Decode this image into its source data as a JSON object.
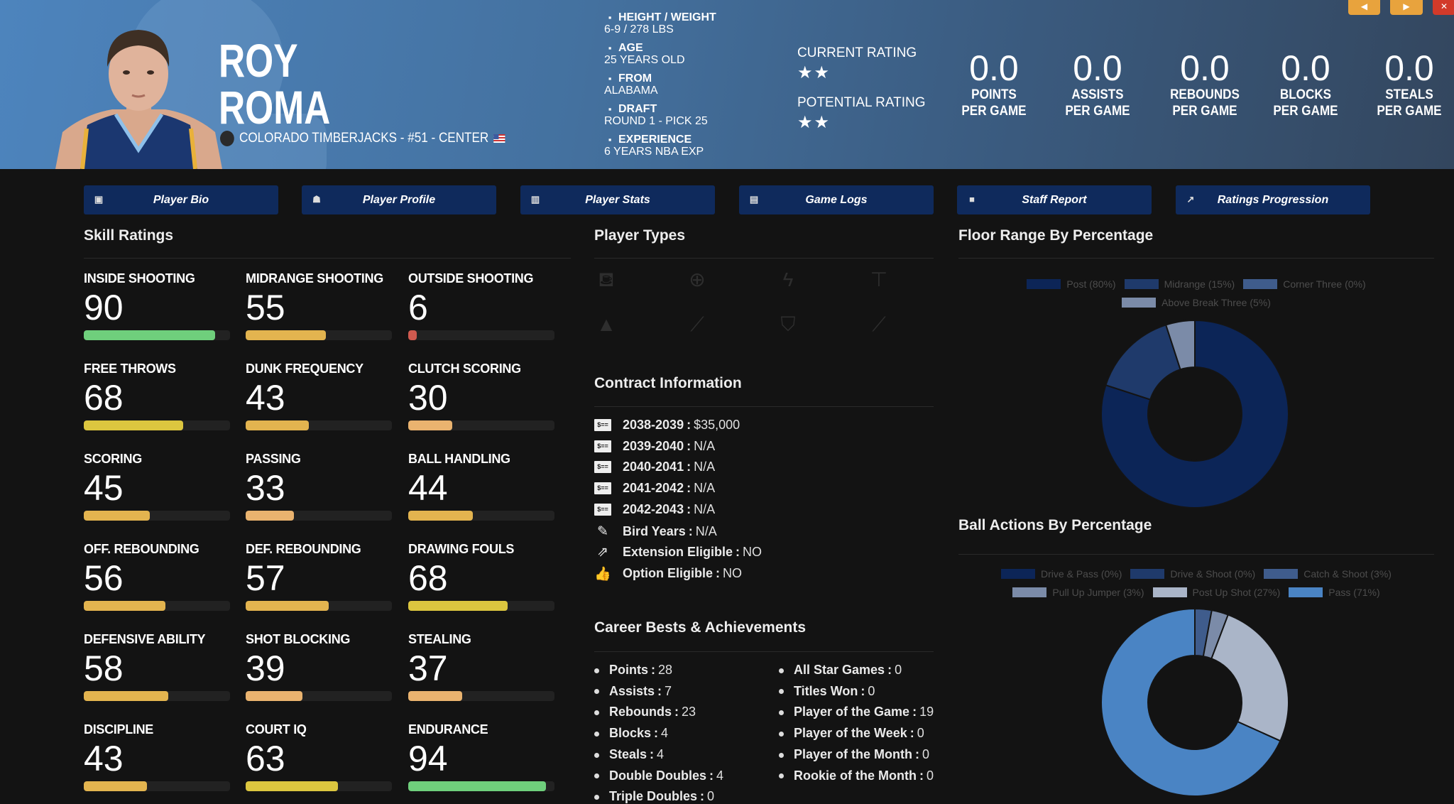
{
  "header": {
    "first_name": "ROY",
    "last_name": "ROMA",
    "team_line": "COLORADO TIMBERJACKS - #51 - CENTER",
    "info": [
      {
        "icon": "ruler-icon",
        "label": "HEIGHT / WEIGHT",
        "value": "6-9 / 278 LBS"
      },
      {
        "icon": "birthday-cake-icon",
        "label": "AGE",
        "value": "25 YEARS OLD"
      },
      {
        "icon": "school-icon",
        "label": "FROM",
        "value": "ALABAMA"
      },
      {
        "icon": "hashtag-icon",
        "label": "DRAFT",
        "value": "ROUND 1 - PICK 25"
      },
      {
        "icon": "user-clock-icon",
        "label": "EXPERIENCE",
        "value": "6 YEARS NBA EXP"
      }
    ],
    "current_rating_label": "CURRENT RATING",
    "current_rating_stars": 2,
    "current_rating_display": "★★",
    "potential_rating_label": "POTENTIAL RATING",
    "potential_rating_stars": 2,
    "potential_rating_display": "★★",
    "stats": [
      {
        "value": "0.0",
        "label1": "POINTS",
        "label2": "PER GAME"
      },
      {
        "value": "0.0",
        "label1": "ASSISTS",
        "label2": "PER GAME"
      },
      {
        "value": "0.0",
        "label1": "REBOUNDS",
        "label2": "PER GAME"
      },
      {
        "value": "0.0",
        "label1": "BLOCKS",
        "label2": "PER GAME"
      },
      {
        "value": "0.0",
        "label1": "STEALS",
        "label2": "PER GAME"
      }
    ],
    "prev_glyph": "◀",
    "next_glyph": "▶",
    "close_glyph": "✕"
  },
  "nav": [
    {
      "label": "Player Bio",
      "icon": "id-badge-icon",
      "glyph": "▣"
    },
    {
      "label": "Player Profile",
      "icon": "book-reader-icon",
      "glyph": "☗"
    },
    {
      "label": "Player Stats",
      "icon": "bar-chart-icon",
      "glyph": "▥"
    },
    {
      "label": "Game Logs",
      "icon": "clipboard-icon",
      "glyph": "▤"
    },
    {
      "label": "Staff Report",
      "icon": "comment-icon",
      "glyph": "■"
    },
    {
      "label": "Ratings Progression",
      "icon": "line-chart-icon",
      "glyph": "↗"
    }
  ],
  "skills": {
    "title": "Skill Ratings",
    "items": [
      {
        "label": "INSIDE SHOOTING",
        "value": 90
      },
      {
        "label": "MIDRANGE SHOOTING",
        "value": 55
      },
      {
        "label": "OUTSIDE SHOOTING",
        "value": 6
      },
      {
        "label": "FREE THROWS",
        "value": 68
      },
      {
        "label": "DUNK FREQUENCY",
        "value": 43
      },
      {
        "label": "CLUTCH SCORING",
        "value": 30
      },
      {
        "label": "SCORING",
        "value": 45
      },
      {
        "label": "PASSING",
        "value": 33
      },
      {
        "label": "BALL HANDLING",
        "value": 44
      },
      {
        "label": "OFF. REBOUNDING",
        "value": 56
      },
      {
        "label": "DEF. REBOUNDING",
        "value": 57
      },
      {
        "label": "DRAWING FOULS",
        "value": 68
      },
      {
        "label": "DEFENSIVE ABILITY",
        "value": 58
      },
      {
        "label": "SHOT BLOCKING",
        "value": 39
      },
      {
        "label": "STEALING",
        "value": 37
      },
      {
        "label": "DISCIPLINE",
        "value": 43
      },
      {
        "label": "COURT IQ",
        "value": 63
      },
      {
        "label": "ENDURANCE",
        "value": 94
      }
    ],
    "colors": {
      "elite": "#6fcf7c",
      "good": "#dcc63f",
      "average": "#e3b44f",
      "low": "#eab36f",
      "poor": "#d05a4f"
    }
  },
  "player_types": {
    "title": "Player Types",
    "icons": [
      {
        "name": "fill-drip-icon",
        "glyph": "⛾"
      },
      {
        "name": "crosshairs-icon",
        "glyph": "⊕"
      },
      {
        "name": "bolt-icon",
        "glyph": "ϟ"
      },
      {
        "name": "paint-roller-icon",
        "glyph": "⊤"
      },
      {
        "name": "hat-wizard-icon",
        "glyph": "▲"
      },
      {
        "name": "magic-wand-icon",
        "glyph": "⟋"
      },
      {
        "name": "shield-icon",
        "glyph": "⛉"
      },
      {
        "name": "broom-icon",
        "glyph": "⟋"
      }
    ]
  },
  "contract": {
    "title": "Contract Information",
    "items": [
      {
        "icon": "money-check-icon",
        "glyph": "$==",
        "label": "2038-2039",
        "value": "$35,000"
      },
      {
        "icon": "money-check-icon",
        "glyph": "$==",
        "label": "2039-2040",
        "value": "N/A"
      },
      {
        "icon": "money-check-icon",
        "glyph": "$==",
        "label": "2040-2041",
        "value": "N/A"
      },
      {
        "icon": "money-check-icon",
        "glyph": "$==",
        "label": "2041-2042",
        "value": "N/A"
      },
      {
        "icon": "money-check-icon",
        "glyph": "$==",
        "label": "2042-2043",
        "value": "N/A"
      },
      {
        "icon": "feather-icon",
        "glyph": "✎",
        "label": "Bird Years",
        "value": "N/A"
      },
      {
        "icon": "external-link-icon",
        "glyph": "⇗",
        "label": "Extension Eligible",
        "value": "NO"
      },
      {
        "icon": "thumbs-up-icon",
        "glyph": "👍",
        "label": "Option Eligible",
        "value": "NO"
      }
    ]
  },
  "career": {
    "title": "Career Bests & Achievements",
    "left": [
      {
        "label": "Points",
        "value": "28"
      },
      {
        "label": "Assists",
        "value": "7"
      },
      {
        "label": "Rebounds",
        "value": "23"
      },
      {
        "label": "Blocks",
        "value": "4"
      },
      {
        "label": "Steals",
        "value": "4"
      },
      {
        "label": "Double Doubles",
        "value": "4"
      },
      {
        "label": "Triple Doubles",
        "value": "0"
      }
    ],
    "right": [
      {
        "label": "All Star Games",
        "value": "0"
      },
      {
        "label": "Titles Won",
        "value": "0"
      },
      {
        "label": "Player of the Game",
        "value": "19"
      },
      {
        "label": "Player of the Week",
        "value": "0"
      },
      {
        "label": "Player of the Month",
        "value": "0"
      },
      {
        "label": "Rookie of the Month",
        "value": "0"
      }
    ]
  },
  "chart_data": [
    {
      "type": "pie",
      "title": "Floor Range By Percentage",
      "legend": "top",
      "categories": [
        "Post (80%)",
        "Midrange (15%)",
        "Corner Three (0%)",
        "Above Break Three (5%)"
      ],
      "values": [
        80,
        15,
        0,
        5
      ],
      "colors": [
        "#0c2557",
        "#1f3a6b",
        "#3f5c8c",
        "#7b8ba8"
      ]
    },
    {
      "type": "pie",
      "title": "Ball Actions By Percentage",
      "legend": "top",
      "categories": [
        "Drive & Pass (0%)",
        "Drive & Shoot (0%)",
        "Catch & Shoot (3%)",
        "Pull Up Jumper (3%)",
        "Post Up Shot (27%)",
        "Pass (71%)"
      ],
      "values": [
        0,
        0,
        3,
        3,
        27,
        71
      ],
      "colors": [
        "#0c2557",
        "#1f3a6b",
        "#3f5c8c",
        "#7b8ba8",
        "#aab5c8",
        "#4a84c4"
      ]
    }
  ]
}
